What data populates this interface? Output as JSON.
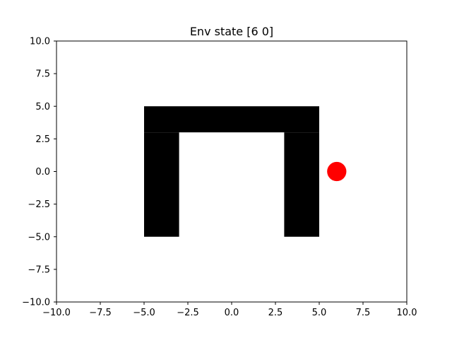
{
  "chart_data": {
    "type": "scatter",
    "title": "Env state [6 0]",
    "xlabel": "",
    "ylabel": "",
    "xlim": [
      -10,
      10
    ],
    "ylim": [
      -10,
      10
    ],
    "grid": false,
    "x_ticks": [
      -10,
      -7.5,
      -5,
      -2.5,
      0,
      2.5,
      5,
      7.5,
      10
    ],
    "y_ticks": [
      -10,
      -7.5,
      -5,
      -2.5,
      0,
      2.5,
      5,
      7.5,
      10
    ],
    "x_tick_labels": [
      "−10.0",
      "−7.5",
      "−5.0",
      "−2.5",
      "0.0",
      "2.5",
      "5.0",
      "7.5",
      "10.0"
    ],
    "y_tick_labels": [
      "−10.0",
      "−7.5",
      "−5.0",
      "−2.5",
      "0.0",
      "2.5",
      "5.0",
      "7.5",
      "10.0"
    ],
    "obstacles": [
      {
        "x": [
          -5,
          5
        ],
        "y": [
          3,
          5
        ]
      },
      {
        "x": [
          -5,
          -3
        ],
        "y": [
          -5,
          3
        ]
      },
      {
        "x": [
          3,
          5
        ],
        "y": [
          -5,
          3
        ]
      }
    ],
    "obstacle_color": "#000000",
    "agent": {
      "x": 6,
      "y": 0,
      "radius": 0.55,
      "color": "#ff0000"
    }
  }
}
